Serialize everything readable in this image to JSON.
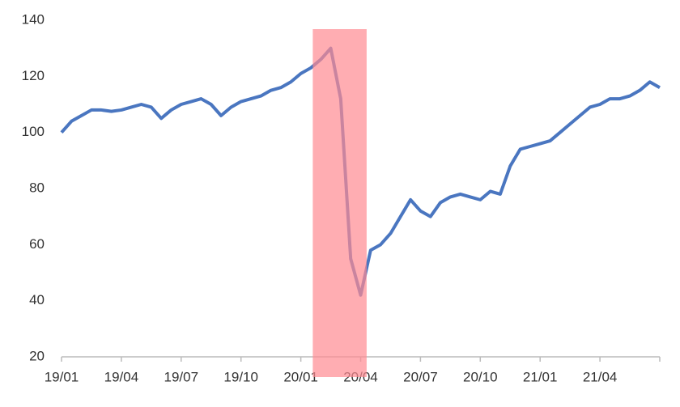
{
  "chart_data": {
    "type": "line",
    "categories": [
      "19/01",
      null,
      null,
      null,
      null,
      null,
      "19/04",
      null,
      null,
      null,
      null,
      null,
      "19/07",
      null,
      null,
      null,
      null,
      null,
      "19/10",
      null,
      null,
      null,
      null,
      null,
      "20/01",
      null,
      null,
      null,
      null,
      null,
      "20/04",
      null,
      null,
      null,
      null,
      null,
      "20/07",
      null,
      null,
      null,
      null,
      null,
      "20/10",
      null,
      null,
      null,
      null,
      null,
      "21/01",
      null,
      null,
      null,
      null,
      null,
      "21/04",
      null,
      null,
      null,
      null,
      null,
      null
    ],
    "series": [
      {
        "color": "#4a76c0",
        "values": [
          100,
          104,
          106,
          108,
          108,
          107.5,
          108,
          109,
          110,
          109,
          105,
          108,
          110,
          111,
          112,
          110,
          106,
          109,
          111,
          112,
          113,
          115,
          116,
          118,
          121,
          123,
          126,
          130,
          112,
          55,
          42,
          58,
          60,
          64,
          70,
          76,
          72,
          70,
          75,
          77,
          78,
          77,
          76,
          79,
          78,
          88,
          94,
          95,
          96,
          97,
          100,
          103,
          106,
          109,
          110,
          112,
          112,
          113,
          115,
          118,
          116
        ]
      }
    ],
    "ylim": [
      20,
      140
    ],
    "yticks": [
      20,
      40,
      60,
      80,
      100,
      120,
      140
    ],
    "grid": false,
    "highlight": {
      "start": 25.2,
      "end": 30.6,
      "color": "#ff8a92"
    }
  }
}
